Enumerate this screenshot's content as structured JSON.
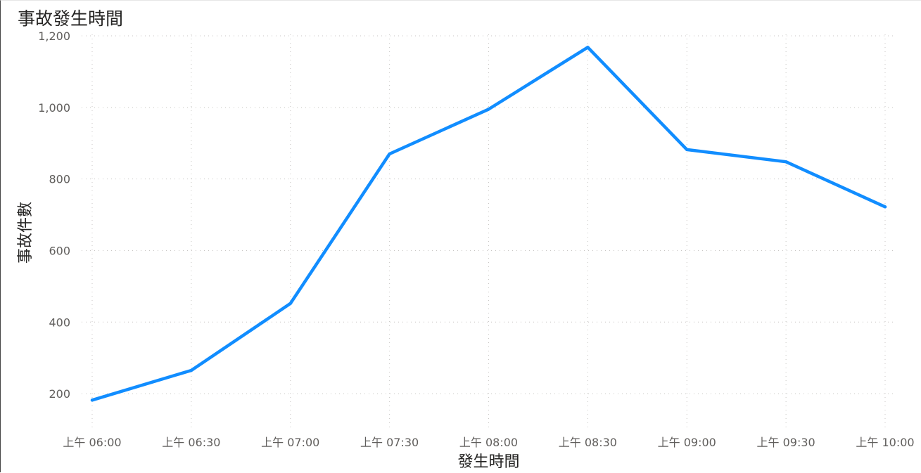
{
  "chart_data": {
    "type": "line",
    "title": "事故發生時間",
    "xlabel": "發生時間",
    "ylabel": "事故件數",
    "categories": [
      "上午 06:00",
      "上午 06:30",
      "上午 07:00",
      "上午 07:30",
      "上午 08:00",
      "上午 08:30",
      "上午 09:00",
      "上午 09:30",
      "上午 10:00"
    ],
    "series": [
      {
        "values": [
          182,
          265,
          452,
          870,
          995,
          1168,
          882,
          848,
          722
        ],
        "color": "#118dff"
      }
    ],
    "ylim": [
      100,
      1200
    ],
    "yticks": [
      200,
      400,
      600,
      800,
      1000,
      1200
    ],
    "ytick_labels": [
      "200",
      "400",
      "600",
      "800",
      "1,000",
      "1,200"
    ],
    "grid": true,
    "grid_style": "dotted",
    "legend": "none"
  }
}
